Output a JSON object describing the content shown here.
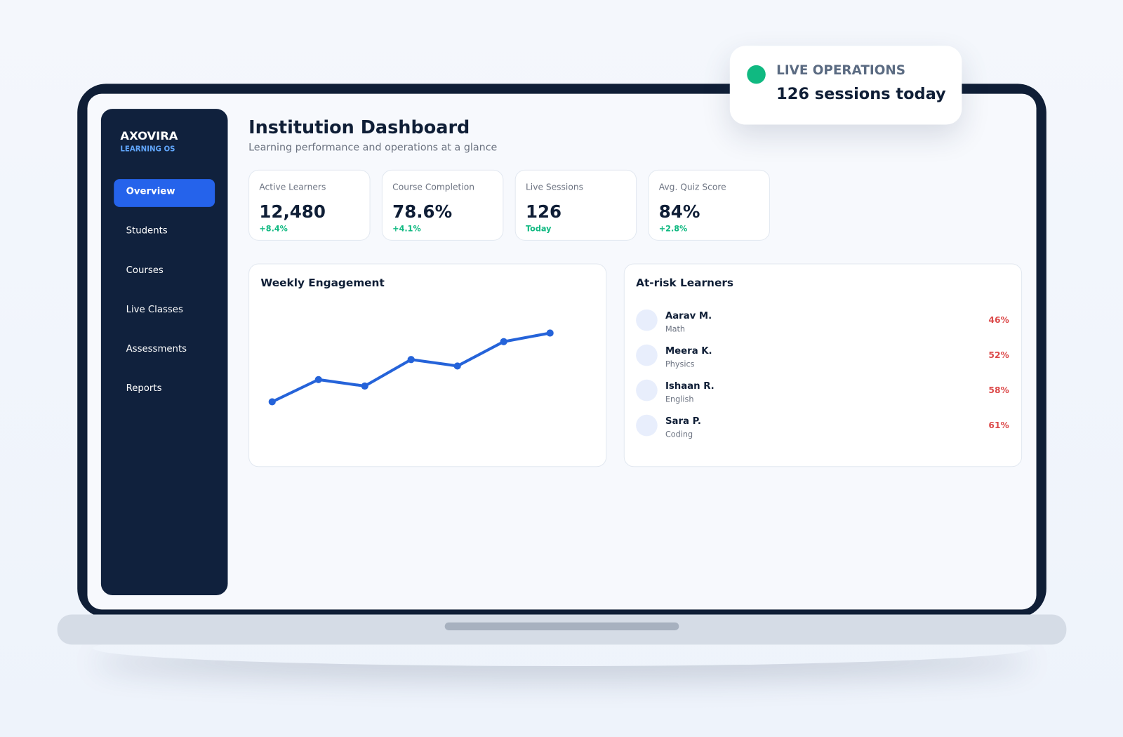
{
  "brand": {
    "name": "AXOVIRA",
    "tagline": "LEARNING OS"
  },
  "nav": [
    {
      "label": "Overview",
      "active": true
    },
    {
      "label": "Students",
      "active": false
    },
    {
      "label": "Courses",
      "active": false
    },
    {
      "label": "Live Classes",
      "active": false
    },
    {
      "label": "Assessments",
      "active": false
    },
    {
      "label": "Reports",
      "active": false
    }
  ],
  "header": {
    "title": "Institution Dashboard",
    "subtitle": "Learning performance and operations at a glance"
  },
  "kpis": [
    {
      "label": "Active Learners",
      "value": "12,480",
      "change": "+8.4%"
    },
    {
      "label": "Course Completion",
      "value": "78.6%",
      "change": "+4.1%"
    },
    {
      "label": "Live Sessions",
      "value": "126",
      "change": "Today"
    },
    {
      "label": "Avg. Quiz Score",
      "value": "84%",
      "change": "+2.8%"
    }
  ],
  "live": {
    "label": "LIVE OPERATIONS",
    "text": "126 sessions today"
  },
  "chart_data": {
    "type": "line",
    "title": "Weekly Engagement",
    "categories": [
      null,
      null,
      null,
      null,
      null,
      null,
      null
    ],
    "values": [
      29.5,
      45,
      40.5,
      59,
      54.5,
      71.5,
      77.5
    ],
    "color": "#2563d9",
    "ylim": [
      0,
      100
    ]
  },
  "at_risk": {
    "title": "At-risk Learners",
    "learners": [
      {
        "name": "Aarav M.",
        "subject": "Math",
        "score": "46%"
      },
      {
        "name": "Meera K.",
        "subject": "Physics",
        "score": "52%"
      },
      {
        "name": "Ishaan R.",
        "subject": "English",
        "score": "58%"
      },
      {
        "name": "Sara P.",
        "subject": "Coding",
        "score": "61%"
      }
    ]
  }
}
